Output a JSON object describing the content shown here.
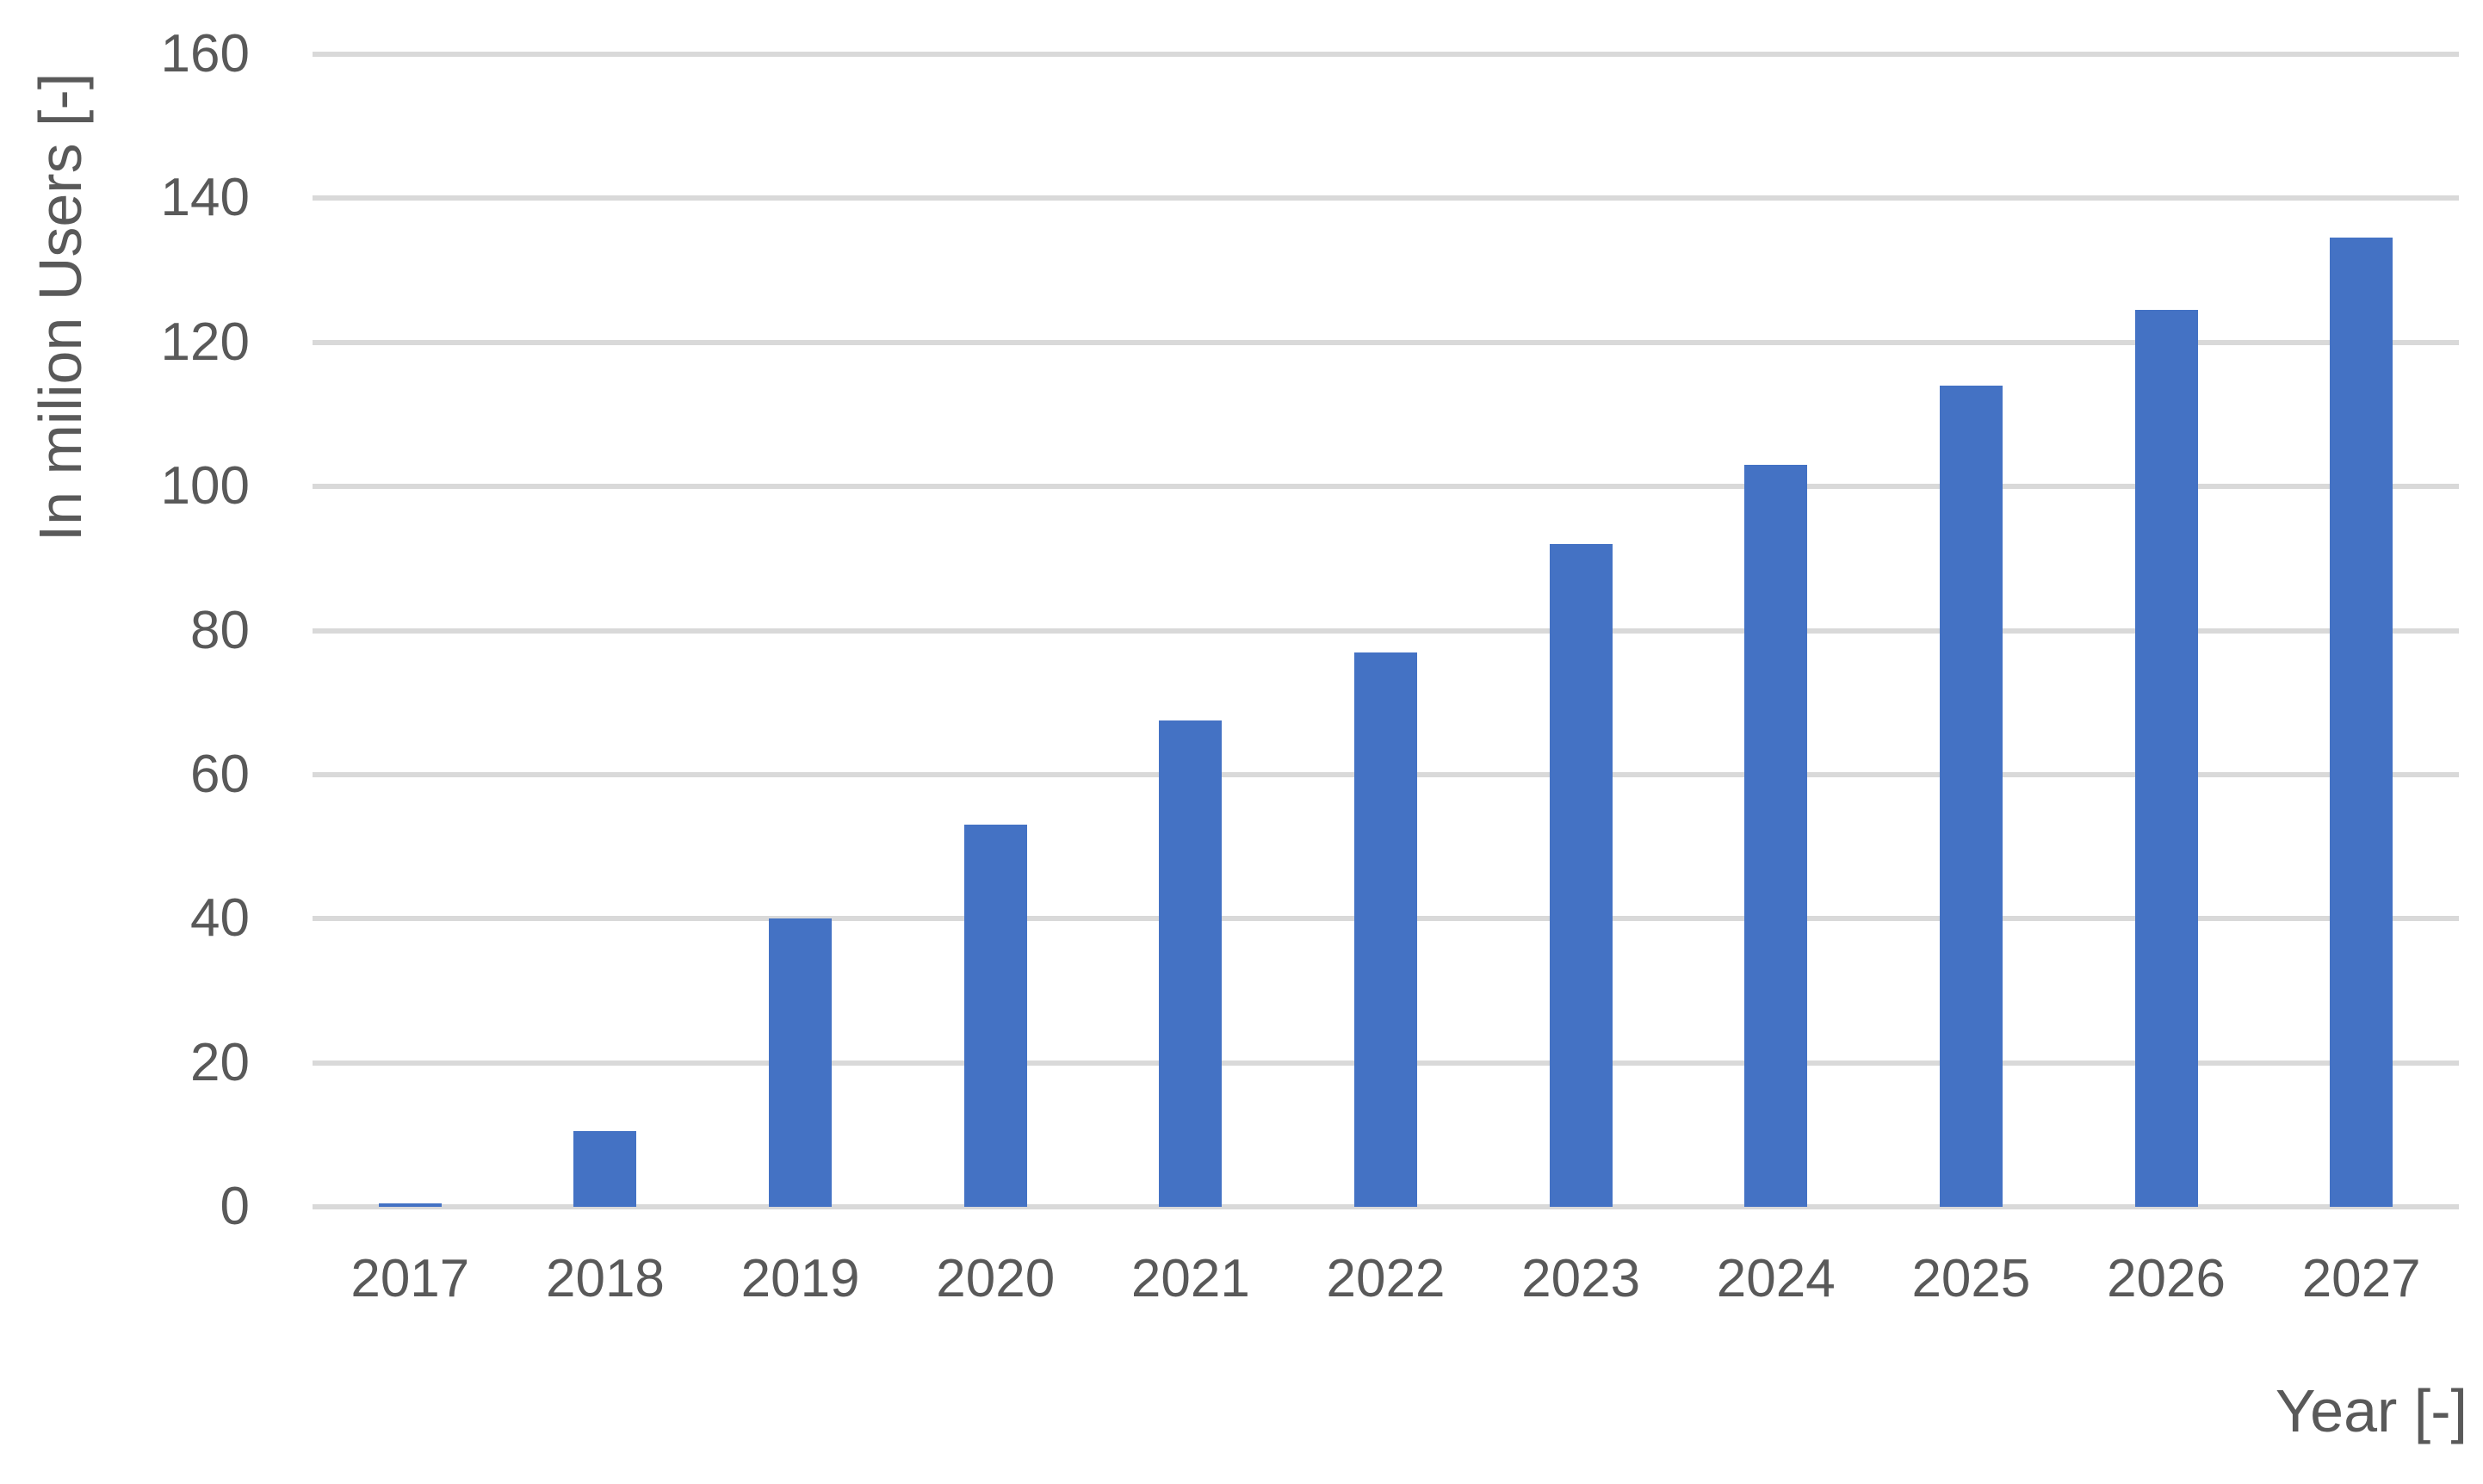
{
  "chart_data": {
    "type": "bar",
    "title": "",
    "xlabel": "Year [-]",
    "ylabel": "In milion Users [-]",
    "categories": [
      "2017",
      "2018",
      "2019",
      "2020",
      "2021",
      "2022",
      "2023",
      "2024",
      "2025",
      "2026",
      "2027"
    ],
    "values": [
      0.5,
      10.5,
      40,
      53,
      67.5,
      77,
      92,
      103,
      114,
      124.5,
      134.5
    ],
    "ylim": [
      0,
      160
    ],
    "yticks": [
      0,
      20,
      40,
      60,
      80,
      100,
      120,
      140,
      160
    ],
    "grid": "horizontal",
    "legend": "none",
    "colors": {
      "bar": "#4472C4",
      "gridline": "#D9D9D9",
      "text": "#595959",
      "background": "#FFFFFF"
    }
  }
}
